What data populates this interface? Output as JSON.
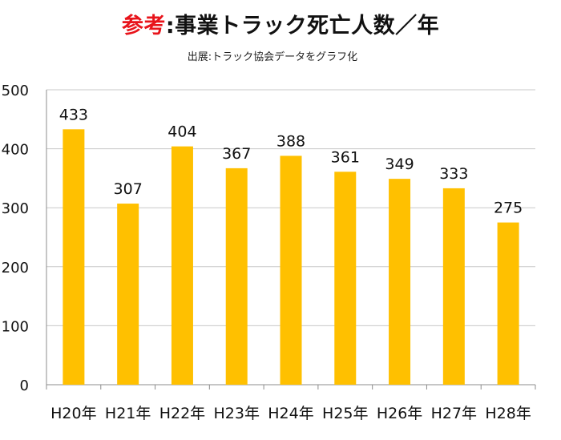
{
  "title": {
    "prefix": "参考",
    "separator": ":",
    "main": "事業トラック死亡人数／年"
  },
  "subtitle": "出展:トラック協会データをグラフ化",
  "chart_data": {
    "type": "bar",
    "categories": [
      "H20年",
      "H21年",
      "H22年",
      "H23年",
      "H24年",
      "H25年",
      "H26年",
      "H27年",
      "H28年"
    ],
    "values": [
      433,
      307,
      404,
      367,
      388,
      361,
      349,
      333,
      275
    ],
    "title": "参考:事業トラック死亡人数／年",
    "subtitle": "出展:トラック協会データをグラフ化",
    "xlabel": "",
    "ylabel": "",
    "ylim": [
      0,
      500
    ],
    "yticks": [
      0,
      100,
      200,
      300,
      400,
      500
    ],
    "grid": true,
    "data_labels": true,
    "bar_color": "#FFC000",
    "title_accent_color": "#E8141B"
  }
}
